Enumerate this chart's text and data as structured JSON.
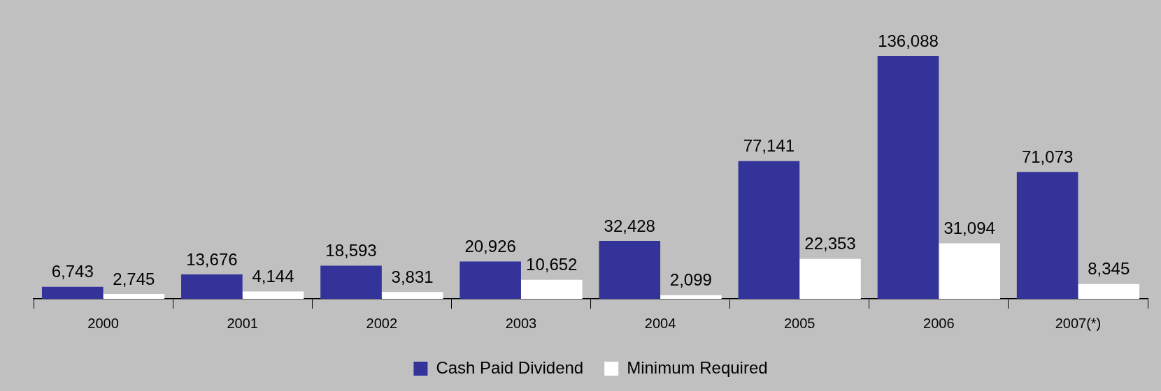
{
  "chart_data": {
    "type": "bar",
    "categories": [
      "2000",
      "2001",
      "2002",
      "2003",
      "2004",
      "2005",
      "2006",
      "2007(*)"
    ],
    "series": [
      {
        "name": "Cash Paid Dividend",
        "color": "#333399",
        "values": [
          6743,
          13676,
          18593,
          20926,
          32428,
          77141,
          136088,
          71073
        ],
        "value_labels": [
          "6,743",
          "13,676",
          "18,593",
          "20,926",
          "32,428",
          "77,141",
          "136,088",
          "71,073"
        ]
      },
      {
        "name": "Minimum Required",
        "color": "#ffffff",
        "values": [
          2745,
          4144,
          3831,
          10652,
          2099,
          22353,
          31094,
          8345
        ],
        "value_labels": [
          "2,745",
          "4,144",
          "3,831",
          "10,652",
          "2,099",
          "22,353",
          "31,094",
          "8,345"
        ]
      }
    ],
    "legend": "bottom",
    "grid": false,
    "tick_labels": "x"
  }
}
